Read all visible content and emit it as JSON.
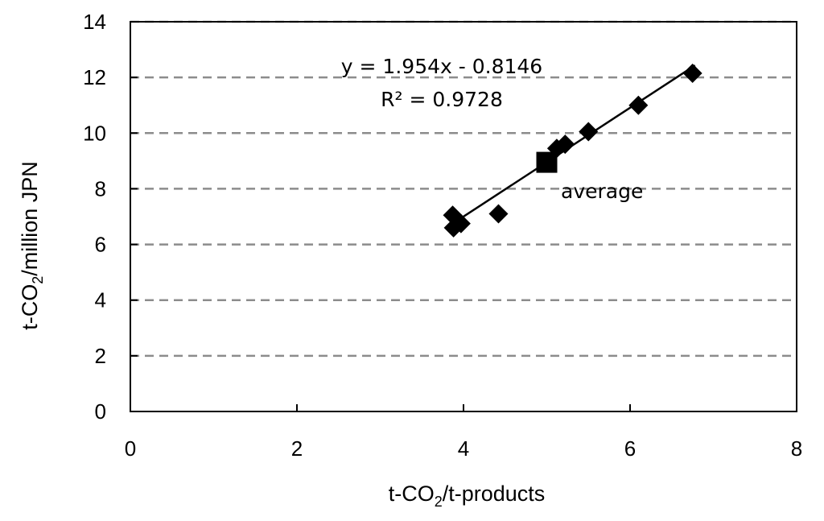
{
  "chart_data": {
    "type": "scatter",
    "xlabel": {
      "pre": "t-CO",
      "sub": "2",
      "post": "/t-products"
    },
    "ylabel": {
      "pre": "t-CO",
      "sub": "2",
      "post": "/million JPN"
    },
    "xlim": [
      0,
      8
    ],
    "ylim": [
      0,
      14
    ],
    "xticks": [
      "0",
      "2",
      "4",
      "6",
      "8"
    ],
    "yticks": [
      "0",
      "2",
      "4",
      "6",
      "8",
      "10",
      "12",
      "14"
    ],
    "grid": "horizontal-dashed",
    "series": [
      {
        "marker": "diamond",
        "points": [
          {
            "x": 3.87,
            "y": 7.05
          },
          {
            "x": 3.88,
            "y": 6.6
          },
          {
            "x": 3.97,
            "y": 6.75
          },
          {
            "x": 4.42,
            "y": 7.1
          },
          {
            "x": 5.12,
            "y": 9.45
          },
          {
            "x": 5.22,
            "y": 9.6
          },
          {
            "x": 5.5,
            "y": 10.05
          },
          {
            "x": 6.1,
            "y": 11.0
          },
          {
            "x": 6.75,
            "y": 12.15
          }
        ]
      },
      {
        "marker": "square",
        "points": [
          {
            "x": 5.0,
            "y": 8.95
          }
        ]
      }
    ],
    "trendline": {
      "slope": 1.954,
      "intercept": -0.8146,
      "x_range": [
        3.87,
        6.78
      ]
    },
    "annotations": {
      "equation": "y = 1.954x - 0.8146",
      "r2_label": "R² = 0.9728",
      "average_label": "average"
    }
  }
}
